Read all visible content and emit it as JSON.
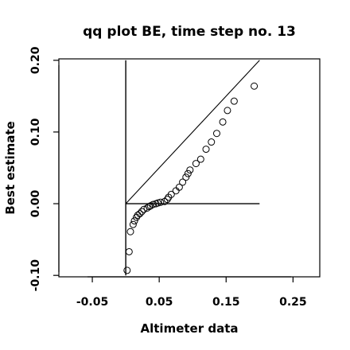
{
  "chart_data": {
    "type": "scatter",
    "title": "qq plot BE, time step no. 13",
    "xlabel": "Altimeter data",
    "ylabel": "Best estimate",
    "xlim": [
      -0.1,
      0.29
    ],
    "ylim": [
      -0.102,
      0.202
    ],
    "x_ticks": [
      -0.05,
      0.05,
      0.15,
      0.25
    ],
    "x_tick_labels": [
      "-0.05",
      "0.05",
      "0.15",
      "0.25"
    ],
    "y_ticks": [
      -0.1,
      0.0,
      0.1,
      0.2
    ],
    "y_tick_labels": [
      "-0.10",
      "0.00",
      "0.10",
      "0.20"
    ],
    "grid": false,
    "series": [
      {
        "points": [
          [
            0.002,
            -0.093
          ],
          [
            0.005,
            -0.067
          ],
          [
            0.007,
            -0.039
          ],
          [
            0.011,
            -0.029
          ],
          [
            0.013,
            -0.024
          ],
          [
            0.016,
            -0.019
          ],
          [
            0.018,
            -0.016
          ],
          [
            0.021,
            -0.014
          ],
          [
            0.024,
            -0.011
          ],
          [
            0.027,
            -0.008
          ],
          [
            0.032,
            -0.006
          ],
          [
            0.035,
            -0.004
          ],
          [
            0.037,
            -0.003
          ],
          [
            0.041,
            -0.001
          ],
          [
            0.045,
            0.0
          ],
          [
            0.048,
            0.001
          ],
          [
            0.052,
            0.002
          ],
          [
            0.058,
            0.003
          ],
          [
            0.062,
            0.006
          ],
          [
            0.064,
            0.009
          ],
          [
            0.068,
            0.013
          ],
          [
            0.075,
            0.018
          ],
          [
            0.08,
            0.023
          ],
          [
            0.085,
            0.03
          ],
          [
            0.09,
            0.037
          ],
          [
            0.093,
            0.042
          ],
          [
            0.096,
            0.047
          ],
          [
            0.105,
            0.056
          ],
          [
            0.112,
            0.062
          ],
          [
            0.12,
            0.076
          ],
          [
            0.128,
            0.086
          ],
          [
            0.136,
            0.098
          ],
          [
            0.145,
            0.114
          ],
          [
            0.152,
            0.13
          ],
          [
            0.162,
            0.143
          ],
          [
            0.192,
            0.164
          ]
        ]
      }
    ],
    "reference_lines": [
      {
        "kind": "identity",
        "from": [
          0.0,
          0.0
        ],
        "to": [
          0.2,
          0.2
        ]
      },
      {
        "kind": "vertical",
        "from": [
          0.0,
          -0.1
        ],
        "to": [
          0.0,
          0.2
        ]
      },
      {
        "kind": "horizontal",
        "from": [
          0.0,
          0.0
        ],
        "to": [
          0.2,
          0.0
        ]
      }
    ],
    "marker": "open-circle",
    "colors": {
      "marks": "#000000",
      "background": "#ffffff"
    }
  }
}
